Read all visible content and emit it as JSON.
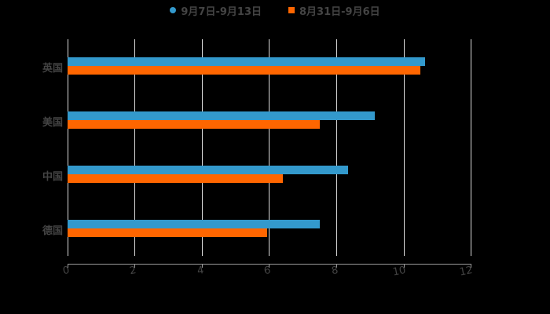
{
  "chart_data": {
    "type": "bar",
    "orientation": "horizontal",
    "title": "",
    "xlabel": "",
    "ylabel": "",
    "categories": [
      "英国",
      "美国",
      "中国",
      "德国"
    ],
    "series": [
      {
        "name": "9月7日-9月13日",
        "color": "#3399cc",
        "marker": "circle",
        "values": [
          10.65,
          9.15,
          8.35,
          7.5
        ]
      },
      {
        "name": "8月31日-9月6日",
        "color": "#ff6600",
        "marker": "square",
        "values": [
          10.5,
          7.5,
          6.4,
          5.95
        ]
      }
    ],
    "xlim": [
      0,
      12
    ],
    "xticks": [
      "0",
      "2",
      "4",
      "6",
      "8",
      "10",
      "12"
    ],
    "grid": {
      "vertical": true,
      "horizontal": false
    },
    "legend_position": "top-center",
    "background": "#000000"
  },
  "legend": {
    "items": [
      {
        "label": "9月7日-9月13日",
        "color": "#3399cc"
      },
      {
        "label": "8月31日-9月6日",
        "color": "#ff6600"
      }
    ]
  },
  "axis": {
    "x_ticks": [
      "0",
      "2",
      "4",
      "6",
      "8",
      "10",
      "12"
    ],
    "y_labels": [
      "英国",
      "美国",
      "中国",
      "德国"
    ]
  }
}
